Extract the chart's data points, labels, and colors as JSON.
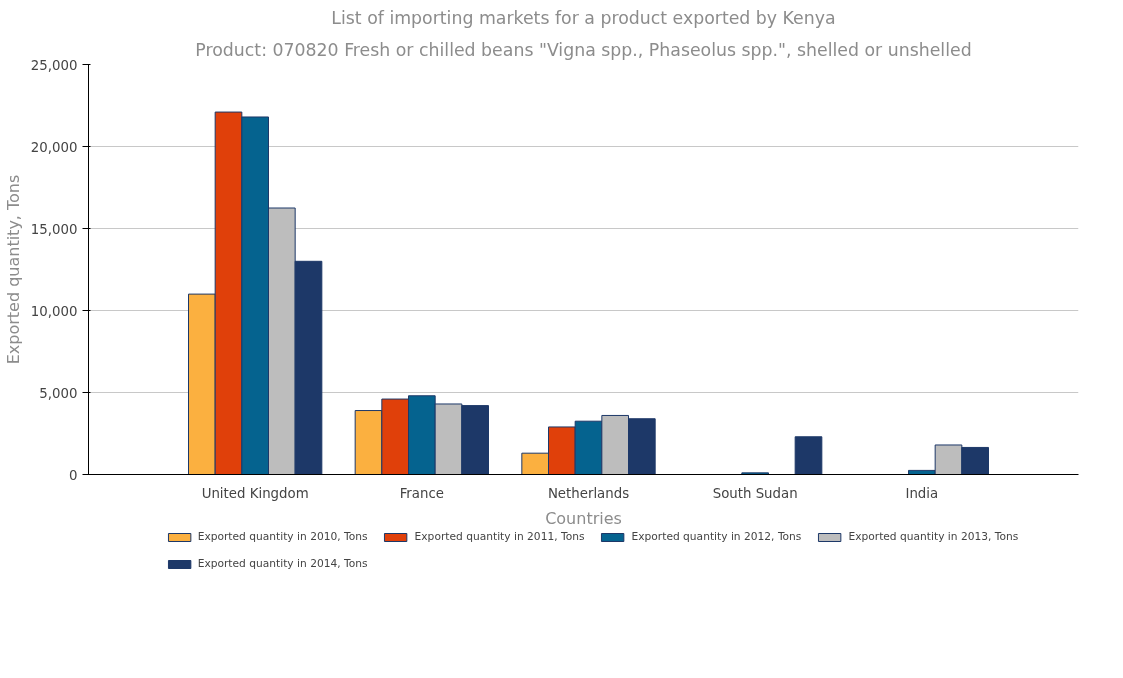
{
  "chart_data": {
    "type": "bar",
    "title": "List of importing markets for a product exported by Kenya",
    "subtitle": "Product: 070820 Fresh or chilled beans \"Vigna spp., Phaseolus spp.\", shelled or unshelled",
    "xlabel": "Countries",
    "ylabel": "Exported quantity, Tons",
    "categories": [
      "United Kingdom",
      "France",
      "Netherlands",
      "South Sudan",
      "India"
    ],
    "series": [
      {
        "name": "Exported quantity in 2010, Tons",
        "color": "#fbb040",
        "values": [
          11000,
          3900,
          1300,
          null,
          null
        ]
      },
      {
        "name": "Exported quantity in 2011, Tons",
        "color": "#e0400a",
        "values": [
          22100,
          4600,
          2900,
          null,
          null
        ]
      },
      {
        "name": "Exported quantity in 2012, Tons",
        "color": "#05638f",
        "values": [
          21800,
          4800,
          3250,
          100,
          250
        ]
      },
      {
        "name": "Exported quantity in 2013, Tons",
        "color": "#bdbdbd",
        "values": [
          16250,
          4300,
          3600,
          null,
          1800
        ]
      },
      {
        "name": "Exported quantity in 2014, Tons",
        "color": "#1d3868",
        "values": [
          13000,
          4200,
          3400,
          2300,
          1650
        ]
      }
    ],
    "ylim": [
      0,
      25000
    ],
    "yticks": [
      {
        "value": 0,
        "label": "0"
      },
      {
        "value": 5000,
        "label": "5,000"
      },
      {
        "value": 10000,
        "label": "10,000"
      },
      {
        "value": 15000,
        "label": "15,000"
      },
      {
        "value": 20000,
        "label": "20,000"
      },
      {
        "value": 25000,
        "label": "25,000"
      }
    ],
    "grid": "y",
    "legend": "bottom"
  }
}
